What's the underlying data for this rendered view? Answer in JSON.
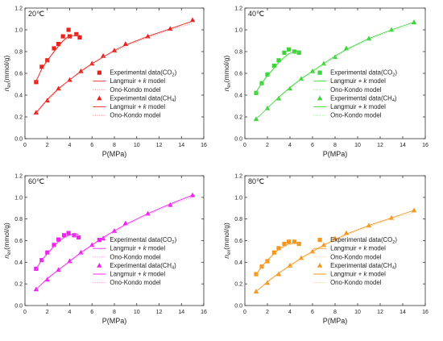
{
  "chart_data": [
    {
      "type": "scatter",
      "title": "20℃",
      "xlabel": "P(MPa)",
      "ylabel_main": "n",
      "ylabel_sub": "ex",
      "ylabel_unit": "(mmol/g)",
      "xlim": [
        0,
        16
      ],
      "ylim": [
        0,
        1.2
      ],
      "xticks": [
        0,
        2,
        4,
        6,
        8,
        10,
        12,
        14,
        16
      ],
      "yticks": [
        0.0,
        0.2,
        0.4,
        0.6,
        0.8,
        1.0,
        1.2
      ],
      "grid": false,
      "legend_position": "right-middle",
      "color": "#e8231f",
      "series": [
        {
          "name": "Experimental data(CO",
          "name_sub": "2",
          "name_end": ")",
          "marker": "square",
          "x": [
            1.0,
            1.5,
            2.0,
            2.6,
            3.0,
            3.4,
            3.9,
            4.0,
            4.6,
            4.9
          ],
          "y": [
            0.52,
            0.66,
            0.72,
            0.83,
            0.87,
            0.94,
            1.0,
            0.94,
            0.96,
            0.93
          ]
        },
        {
          "name": "Langmuir + k model",
          "line": "solid",
          "x": [
            1.0,
            1.5,
            2.0,
            2.6,
            3.0,
            3.4,
            3.9,
            4.6,
            4.9
          ],
          "y": [
            0.53,
            0.64,
            0.72,
            0.8,
            0.85,
            0.9,
            0.94,
            0.95,
            0.95
          ]
        },
        {
          "name": "Ono-Kondo model",
          "line": "dotted",
          "x": [
            1.0,
            1.5,
            2.0,
            2.6,
            3.0,
            3.4,
            3.9,
            4.6,
            4.9
          ],
          "y": [
            0.52,
            0.63,
            0.71,
            0.79,
            0.84,
            0.89,
            0.93,
            0.95,
            0.95
          ]
        },
        {
          "name": "Experimental data(CH",
          "name_sub": "4",
          "name_end": ")",
          "marker": "triangle",
          "x": [
            1.0,
            2.0,
            3.0,
            4.0,
            5.0,
            6.0,
            7.0,
            8.0,
            9.0,
            11.0,
            13.0,
            15.0
          ],
          "y": [
            0.24,
            0.35,
            0.46,
            0.54,
            0.62,
            0.69,
            0.76,
            0.81,
            0.87,
            0.94,
            1.01,
            1.09
          ]
        },
        {
          "name": "Langmuir + k model",
          "line": "solid",
          "x": [
            1.0,
            2.0,
            3.0,
            4.0,
            5.0,
            6.0,
            7.0,
            8.0,
            9.0,
            11.0,
            13.0,
            15.0
          ],
          "y": [
            0.24,
            0.36,
            0.46,
            0.54,
            0.62,
            0.69,
            0.75,
            0.81,
            0.86,
            0.94,
            1.01,
            1.08
          ]
        },
        {
          "name": "Ono-Kondo model",
          "line": "dotted",
          "x": [
            1.0,
            2.0,
            3.0,
            4.0,
            5.0,
            6.0,
            7.0,
            8.0,
            9.0,
            11.0,
            13.0,
            15.0
          ],
          "y": [
            0.23,
            0.35,
            0.45,
            0.54,
            0.61,
            0.68,
            0.75,
            0.8,
            0.85,
            0.93,
            1.0,
            1.06
          ]
        }
      ]
    },
    {
      "type": "scatter",
      "title": "40℃",
      "xlabel": "P(MPa)",
      "ylabel_main": "n",
      "ylabel_sub": "ex",
      "ylabel_unit": "(mmol/g)",
      "xlim": [
        0,
        16
      ],
      "ylim": [
        0,
        1.2
      ],
      "xticks": [
        0,
        2,
        4,
        6,
        8,
        10,
        12,
        14,
        16
      ],
      "yticks": [
        0.0,
        0.2,
        0.4,
        0.6,
        0.8,
        1.0,
        1.2
      ],
      "grid": false,
      "legend_position": "right-middle",
      "color": "#3fd43a",
      "series": [
        {
          "name": "Experimental data(CO",
          "name_sub": "2",
          "name_end": ")",
          "marker": "square",
          "x": [
            1.0,
            1.5,
            2.0,
            2.6,
            3.0,
            3.5,
            3.9,
            4.4,
            4.8
          ],
          "y": [
            0.42,
            0.51,
            0.59,
            0.67,
            0.72,
            0.79,
            0.82,
            0.8,
            0.79
          ]
        },
        {
          "name": "Langmuir + k model",
          "line": "solid",
          "x": [
            1.0,
            1.5,
            2.0,
            2.6,
            3.0,
            3.5,
            3.9,
            4.4,
            4.8
          ],
          "y": [
            0.43,
            0.51,
            0.58,
            0.65,
            0.7,
            0.75,
            0.78,
            0.8,
            0.81
          ]
        },
        {
          "name": "Ono-Kondo model",
          "line": "dotted",
          "x": [
            1.0,
            1.5,
            2.0,
            2.6,
            3.0,
            3.5,
            3.9,
            4.4,
            4.8
          ],
          "y": [
            0.42,
            0.5,
            0.57,
            0.64,
            0.69,
            0.74,
            0.77,
            0.79,
            0.8
          ]
        },
        {
          "name": "Experimental data(CH",
          "name_sub": "4",
          "name_end": ")",
          "marker": "triangle",
          "x": [
            1.0,
            2.0,
            3.0,
            4.0,
            5.0,
            6.0,
            7.0,
            8.0,
            9.0,
            11.0,
            13.0,
            15.0
          ],
          "y": [
            0.18,
            0.28,
            0.37,
            0.46,
            0.55,
            0.62,
            0.69,
            0.75,
            0.83,
            0.92,
            1.0,
            1.07
          ]
        },
        {
          "name": "Langmuir + k model",
          "line": "solid",
          "x": [
            1.0,
            2.0,
            3.0,
            4.0,
            5.0,
            6.0,
            7.0,
            8.0,
            9.0,
            11.0,
            13.0,
            15.0
          ],
          "y": [
            0.18,
            0.28,
            0.38,
            0.47,
            0.55,
            0.62,
            0.69,
            0.76,
            0.82,
            0.92,
            1.0,
            1.07
          ]
        },
        {
          "name": "Ono-Kondo model",
          "line": "dotted",
          "x": [
            1.0,
            2.0,
            3.0,
            4.0,
            5.0,
            6.0,
            7.0,
            8.0,
            9.0,
            11.0,
            13.0,
            15.0
          ],
          "y": [
            0.18,
            0.28,
            0.37,
            0.46,
            0.54,
            0.61,
            0.68,
            0.75,
            0.81,
            0.91,
            0.99,
            1.05
          ]
        }
      ]
    },
    {
      "type": "scatter",
      "title": "60℃",
      "xlabel": "P(MPa)",
      "ylabel_main": "n",
      "ylabel_sub": "ex",
      "ylabel_unit": "(mmol/g)",
      "xlim": [
        0,
        16
      ],
      "ylim": [
        0,
        1.2
      ],
      "xticks": [
        0,
        2,
        4,
        6,
        8,
        10,
        12,
        14,
        16
      ],
      "yticks": [
        0.0,
        0.2,
        0.4,
        0.6,
        0.8,
        1.0,
        1.2
      ],
      "grid": false,
      "legend_position": "right-middle",
      "color": "#ee24ee",
      "series": [
        {
          "name": "Experimental data(CO",
          "name_sub": "2",
          "name_end": ")",
          "marker": "square",
          "x": [
            1.0,
            1.5,
            2.0,
            2.6,
            3.0,
            3.5,
            3.9,
            4.4,
            4.8
          ],
          "y": [
            0.34,
            0.42,
            0.49,
            0.56,
            0.61,
            0.65,
            0.67,
            0.65,
            0.63
          ]
        },
        {
          "name": "Langmuir + k model",
          "line": "solid",
          "x": [
            1.0,
            1.5,
            2.0,
            2.6,
            3.0,
            3.5,
            3.9,
            4.4,
            4.8
          ],
          "y": [
            0.34,
            0.42,
            0.48,
            0.55,
            0.59,
            0.63,
            0.65,
            0.66,
            0.66
          ]
        },
        {
          "name": "Ono-Kondo model",
          "line": "dotted",
          "x": [
            1.0,
            1.5,
            2.0,
            2.6,
            3.0,
            3.5,
            3.9,
            4.4,
            4.8
          ],
          "y": [
            0.33,
            0.41,
            0.47,
            0.54,
            0.58,
            0.62,
            0.64,
            0.65,
            0.65
          ]
        },
        {
          "name": "Experimental data(CH",
          "name_sub": "4",
          "name_end": ")",
          "marker": "triangle",
          "x": [
            1.0,
            2.0,
            3.0,
            4.0,
            5.0,
            6.0,
            7.0,
            8.0,
            9.0,
            11.0,
            13.0,
            15.0
          ],
          "y": [
            0.15,
            0.24,
            0.33,
            0.41,
            0.49,
            0.56,
            0.62,
            0.69,
            0.76,
            0.85,
            0.93,
            1.02
          ]
        },
        {
          "name": "Langmuir + k model",
          "line": "solid",
          "x": [
            1.0,
            2.0,
            3.0,
            4.0,
            5.0,
            6.0,
            7.0,
            8.0,
            9.0,
            11.0,
            13.0,
            15.0
          ],
          "y": [
            0.15,
            0.25,
            0.33,
            0.41,
            0.49,
            0.56,
            0.63,
            0.69,
            0.75,
            0.85,
            0.94,
            1.02
          ]
        },
        {
          "name": "Ono-Kondo model",
          "line": "dotted",
          "x": [
            1.0,
            2.0,
            3.0,
            4.0,
            5.0,
            6.0,
            7.0,
            8.0,
            9.0,
            11.0,
            13.0,
            15.0
          ],
          "y": [
            0.15,
            0.24,
            0.32,
            0.4,
            0.48,
            0.55,
            0.62,
            0.68,
            0.74,
            0.84,
            0.93,
            1.0
          ]
        }
      ]
    },
    {
      "type": "scatter",
      "title": "80℃",
      "xlabel": "P(MPa)",
      "ylabel_main": "n",
      "ylabel_sub": "ex",
      "ylabel_unit": "(mmol/g)",
      "xlim": [
        0,
        16
      ],
      "ylim": [
        0,
        1.2
      ],
      "xticks": [
        0,
        2,
        4,
        6,
        8,
        10,
        12,
        14,
        16
      ],
      "yticks": [
        0.0,
        0.2,
        0.4,
        0.6,
        0.8,
        1.0,
        1.2
      ],
      "grid": false,
      "legend_position": "right-middle",
      "color": "#f5961e",
      "series": [
        {
          "name": "Experimental data(CO",
          "name_sub": "2",
          "name_end": ")",
          "marker": "square",
          "x": [
            1.0,
            1.5,
            2.0,
            2.6,
            3.0,
            3.5,
            3.9,
            4.4,
            4.8
          ],
          "y": [
            0.29,
            0.36,
            0.41,
            0.49,
            0.53,
            0.57,
            0.59,
            0.59,
            0.57
          ]
        },
        {
          "name": "Langmuir + k model",
          "line": "solid",
          "x": [
            1.0,
            1.5,
            2.0,
            2.6,
            3.0,
            3.5,
            3.9,
            4.4,
            4.8
          ],
          "y": [
            0.29,
            0.36,
            0.42,
            0.48,
            0.52,
            0.55,
            0.57,
            0.58,
            0.58
          ]
        },
        {
          "name": "Ono-Kondo model",
          "line": "dotted",
          "x": [
            1.0,
            1.5,
            2.0,
            2.6,
            3.0,
            3.5,
            3.9,
            4.4,
            4.8
          ],
          "y": [
            0.28,
            0.35,
            0.41,
            0.47,
            0.51,
            0.54,
            0.56,
            0.57,
            0.57
          ]
        },
        {
          "name": "Experimental data(CH",
          "name_sub": "4",
          "name_end": ")",
          "marker": "triangle",
          "x": [
            1.0,
            2.0,
            3.0,
            4.0,
            5.0,
            6.0,
            7.0,
            8.0,
            9.0,
            11.0,
            13.0,
            15.0
          ],
          "y": [
            0.13,
            0.21,
            0.29,
            0.37,
            0.44,
            0.5,
            0.56,
            0.62,
            0.67,
            0.74,
            0.81,
            0.88
          ]
        },
        {
          "name": "Langmuir + k model",
          "line": "solid",
          "x": [
            1.0,
            2.0,
            3.0,
            4.0,
            5.0,
            6.0,
            7.0,
            8.0,
            9.0,
            11.0,
            13.0,
            15.0
          ],
          "y": [
            0.13,
            0.22,
            0.3,
            0.37,
            0.44,
            0.5,
            0.56,
            0.61,
            0.66,
            0.74,
            0.81,
            0.88
          ]
        },
        {
          "name": "Ono-Kondo model",
          "line": "dotted",
          "x": [
            1.0,
            2.0,
            3.0,
            4.0,
            5.0,
            6.0,
            7.0,
            8.0,
            9.0,
            11.0,
            13.0,
            15.0
          ],
          "y": [
            0.13,
            0.21,
            0.29,
            0.36,
            0.43,
            0.49,
            0.55,
            0.6,
            0.65,
            0.73,
            0.8,
            0.86
          ]
        }
      ]
    }
  ]
}
